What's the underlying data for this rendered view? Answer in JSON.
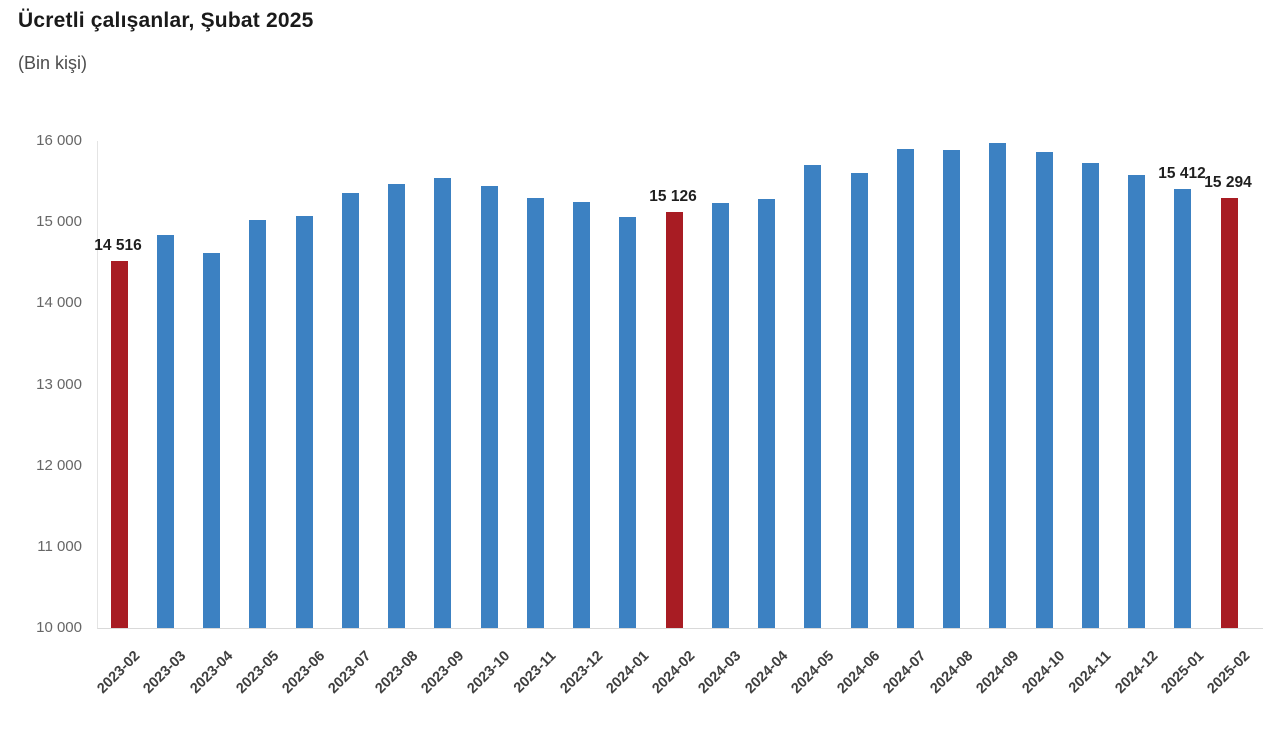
{
  "header": {
    "title": "Ücretli çalışanlar, Şubat 2025",
    "subtitle": "(Bin kişi)"
  },
  "chart_data": {
    "type": "bar",
    "title": "Ücretli çalışanlar, Şubat 2025",
    "subtitle": "(Bin kişi)",
    "unit": "Bin kişi",
    "categories": [
      "2023-02",
      "2023-03",
      "2023-04",
      "2023-05",
      "2023-06",
      "2023-07",
      "2023-08",
      "2023-09",
      "2023-10",
      "2023-11",
      "2023-12",
      "2024-01",
      "2024-02",
      "2024-03",
      "2024-04",
      "2024-05",
      "2024-06",
      "2024-07",
      "2024-08",
      "2024-09",
      "2024-10",
      "2024-11",
      "2024-12",
      "2025-01",
      "2025-02"
    ],
    "values": [
      14516,
      14840,
      14620,
      15030,
      15080,
      15365,
      15470,
      15540,
      15445,
      15300,
      15245,
      15065,
      15126,
      15230,
      15285,
      15700,
      15610,
      15905,
      15895,
      15980,
      15860,
      15735,
      15580,
      15412,
      15294
    ],
    "highlight_indices": [
      0,
      12,
      24
    ],
    "highlighted_categories": [
      "2023-02",
      "2024-02",
      "2025-02"
    ],
    "data_labels": [
      {
        "index": 0,
        "text": "14 516"
      },
      {
        "index": 12,
        "text": "15 126"
      },
      {
        "index": 23,
        "text": "15 412"
      },
      {
        "index": 24,
        "text": "15 294"
      }
    ],
    "ylim": [
      10000,
      16000
    ],
    "ytick_values": [
      10000,
      11000,
      12000,
      13000,
      14000,
      15000,
      16000
    ],
    "ytick_labels": [
      "10 000",
      "11 000",
      "12 000",
      "13 000",
      "14 000",
      "15 000",
      "16 000"
    ],
    "xlabel": "",
    "ylabel": "",
    "grid": "off",
    "legend": "none",
    "colors": {
      "bar": "#3c81c2",
      "highlight": "#a81c23",
      "axis_line": "#d9d9d9",
      "tick_text": "#666666",
      "category_text": "#3f3f3f",
      "value_label_text": "#1f1f1f",
      "title_text": "#1a1a1a",
      "subtitle_text": "#4d4d4d",
      "background": "#ffffff"
    }
  }
}
